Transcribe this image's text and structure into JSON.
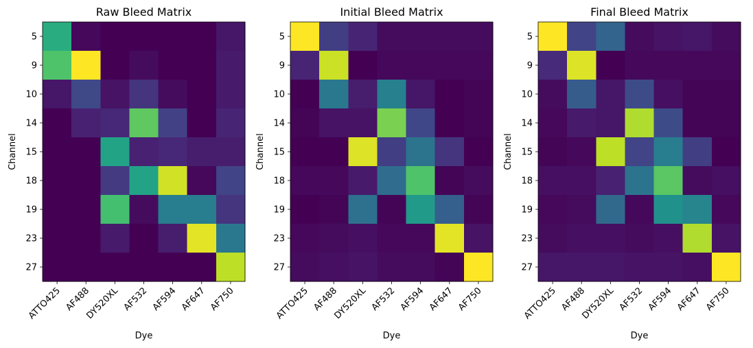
{
  "chart_data": [
    {
      "type": "heatmap",
      "title": "Raw Bleed Matrix",
      "xlabel": "Dye",
      "ylabel": "Channel",
      "x_categories": [
        "ATTO425",
        "AF488",
        "DY520XL",
        "AF532",
        "AF594",
        "AF647",
        "AF750"
      ],
      "y_categories": [
        "5",
        "9",
        "10",
        "14",
        "15",
        "18",
        "19",
        "23",
        "27"
      ],
      "colormap": "viridis",
      "values": [
        [
          0.62,
          0.02,
          0.0,
          0.0,
          0.0,
          0.0,
          0.06
        ],
        [
          0.72,
          1.0,
          0.0,
          0.03,
          0.0,
          0.0,
          0.07
        ],
        [
          0.06,
          0.22,
          0.05,
          0.15,
          0.03,
          0.0,
          0.07
        ],
        [
          0.0,
          0.09,
          0.11,
          0.75,
          0.19,
          0.0,
          0.1
        ],
        [
          0.0,
          0.0,
          0.58,
          0.09,
          0.11,
          0.08,
          0.08
        ],
        [
          0.0,
          0.0,
          0.17,
          0.58,
          0.93,
          0.02,
          0.2
        ],
        [
          0.0,
          0.0,
          0.7,
          0.03,
          0.42,
          0.42,
          0.15
        ],
        [
          0.0,
          0.0,
          0.07,
          0.0,
          0.08,
          0.96,
          0.4
        ],
        [
          0.0,
          0.0,
          0.0,
          0.0,
          0.0,
          0.0,
          0.9
        ]
      ]
    },
    {
      "type": "heatmap",
      "title": "Initial Bleed Matrix",
      "xlabel": "Dye",
      "ylabel": "Channel",
      "x_categories": [
        "ATTO425",
        "AF488",
        "DY520XL",
        "AF532",
        "AF594",
        "AF647",
        "AF750"
      ],
      "y_categories": [
        "5",
        "9",
        "10",
        "14",
        "15",
        "18",
        "19",
        "23",
        "27"
      ],
      "colormap": "viridis",
      "values": [
        [
          1.0,
          0.18,
          0.1,
          0.03,
          0.03,
          0.03,
          0.03
        ],
        [
          0.1,
          0.92,
          0.0,
          0.02,
          0.02,
          0.02,
          0.02
        ],
        [
          0.0,
          0.4,
          0.08,
          0.43,
          0.06,
          0.0,
          0.01
        ],
        [
          0.01,
          0.05,
          0.05,
          0.8,
          0.21,
          0.0,
          0.01
        ],
        [
          0.0,
          0.0,
          0.95,
          0.18,
          0.38,
          0.15,
          0.0
        ],
        [
          0.02,
          0.02,
          0.07,
          0.35,
          0.72,
          0.01,
          0.03
        ],
        [
          0.0,
          0.01,
          0.37,
          0.01,
          0.54,
          0.3,
          0.01
        ],
        [
          0.02,
          0.03,
          0.04,
          0.02,
          0.02,
          0.96,
          0.05
        ],
        [
          0.03,
          0.04,
          0.05,
          0.03,
          0.03,
          0.01,
          1.0
        ]
      ]
    },
    {
      "type": "heatmap",
      "title": "Final Bleed Matrix",
      "xlabel": "Dye",
      "ylabel": "Channel",
      "x_categories": [
        "ATTO425",
        "AF488",
        "DY520XL",
        "AF532",
        "AF594",
        "AF647",
        "AF750"
      ],
      "y_categories": [
        "5",
        "9",
        "10",
        "14",
        "15",
        "18",
        "19",
        "23",
        "27"
      ],
      "colormap": "viridis",
      "values": [
        [
          1.0,
          0.2,
          0.32,
          0.03,
          0.05,
          0.06,
          0.03
        ],
        [
          0.12,
          0.95,
          0.0,
          0.02,
          0.02,
          0.02,
          0.02
        ],
        [
          0.03,
          0.29,
          0.06,
          0.23,
          0.04,
          0.01,
          0.01
        ],
        [
          0.02,
          0.07,
          0.06,
          0.88,
          0.23,
          0.01,
          0.01
        ],
        [
          0.01,
          0.02,
          0.9,
          0.2,
          0.42,
          0.18,
          0.0
        ],
        [
          0.04,
          0.04,
          0.09,
          0.38,
          0.74,
          0.03,
          0.04
        ],
        [
          0.02,
          0.03,
          0.34,
          0.02,
          0.5,
          0.45,
          0.02
        ],
        [
          0.03,
          0.04,
          0.04,
          0.03,
          0.04,
          0.88,
          0.05
        ],
        [
          0.06,
          0.06,
          0.06,
          0.05,
          0.05,
          0.04,
          1.0
        ]
      ]
    }
  ]
}
